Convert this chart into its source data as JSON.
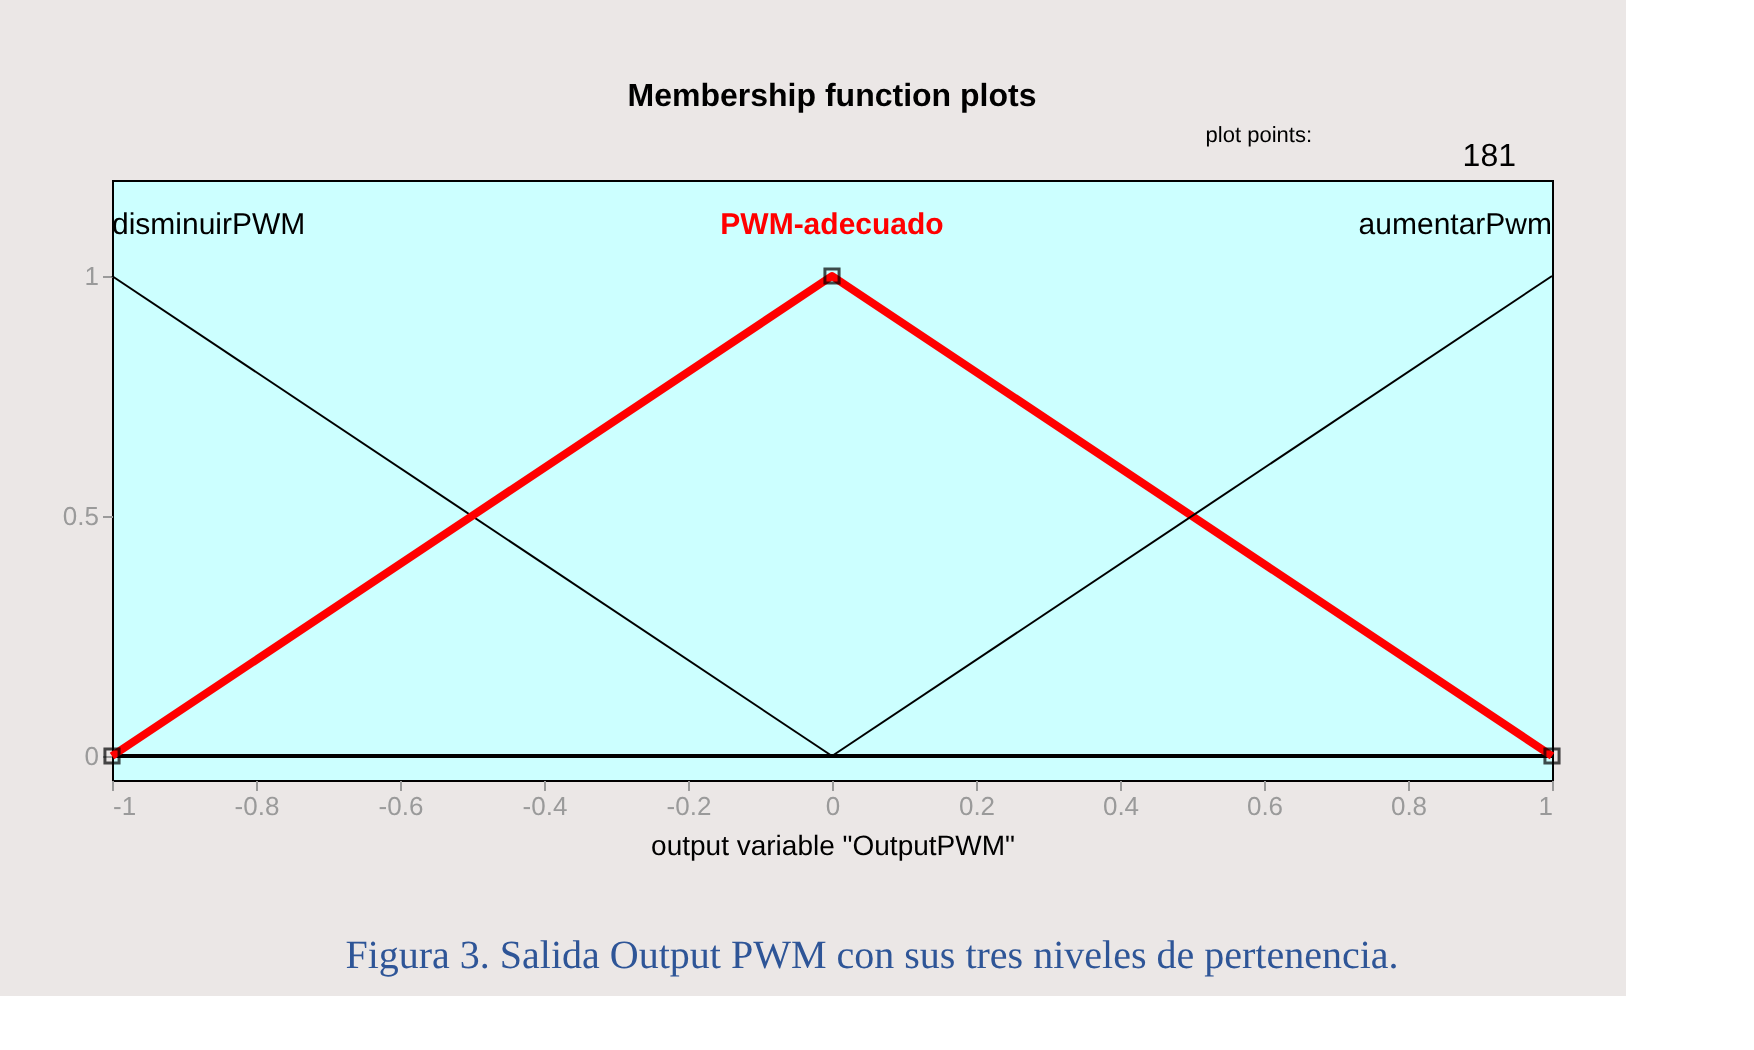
{
  "chart_data": {
    "type": "line",
    "title": "Membership function plots",
    "xlabel": "output variable \"OutputPWM\"",
    "xlim": [
      -1,
      1
    ],
    "xticks": [
      -1,
      -0.8,
      -0.6,
      -0.4,
      -0.2,
      0,
      0.2,
      0.4,
      0.6,
      0.8,
      1
    ],
    "ylim": [
      -0.05,
      1.2
    ],
    "yticks": [
      0,
      0.5,
      1
    ],
    "grid": false,
    "series": [
      {
        "name": "disminuirPWM",
        "color": "#000000",
        "x": [
          -1,
          0
        ],
        "values": [
          1,
          0
        ]
      },
      {
        "name": "PWM-adecuado",
        "color": "#ff0000",
        "x": [
          -1,
          0,
          1
        ],
        "values": [
          0,
          1,
          0
        ],
        "marker": "square"
      },
      {
        "name": "aumentarPwm",
        "color": "#000000",
        "x": [
          0,
          1
        ],
        "values": [
          0,
          1
        ]
      }
    ],
    "ref_lines": [
      {
        "axis": "y",
        "value": 0,
        "color": "#000000"
      }
    ],
    "annotations": [
      "plot points:",
      "181",
      "Figura 3. Salida Output PWM con sus tres niveles de pertenencia."
    ]
  }
}
